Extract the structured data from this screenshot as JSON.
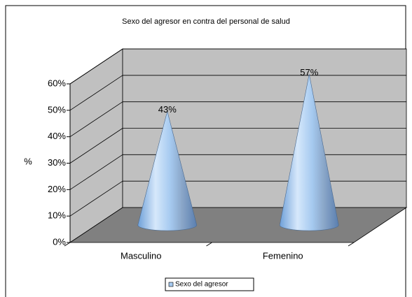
{
  "chart_data": {
    "type": "cone",
    "title": "Sexo del agresor en contra del personal de salud",
    "y_label": "%",
    "categories": [
      "Masculino",
      "Femenino"
    ],
    "series": [
      {
        "name": "Sexo del agresor",
        "color": "#a6caf0",
        "values": [
          43,
          57
        ],
        "value_labels": [
          "43%",
          "57%"
        ]
      }
    ],
    "ylim": [
      0,
      60
    ],
    "yticks": [
      {
        "value": 0,
        "label": "0%"
      },
      {
        "value": 10,
        "label": "10%"
      },
      {
        "value": 20,
        "label": "20%"
      },
      {
        "value": 30,
        "label": "30%"
      },
      {
        "value": 40,
        "label": "40%"
      },
      {
        "value": 50,
        "label": "50%"
      },
      {
        "value": 60,
        "label": "60%"
      }
    ],
    "grid": true,
    "legend": "bottom"
  }
}
